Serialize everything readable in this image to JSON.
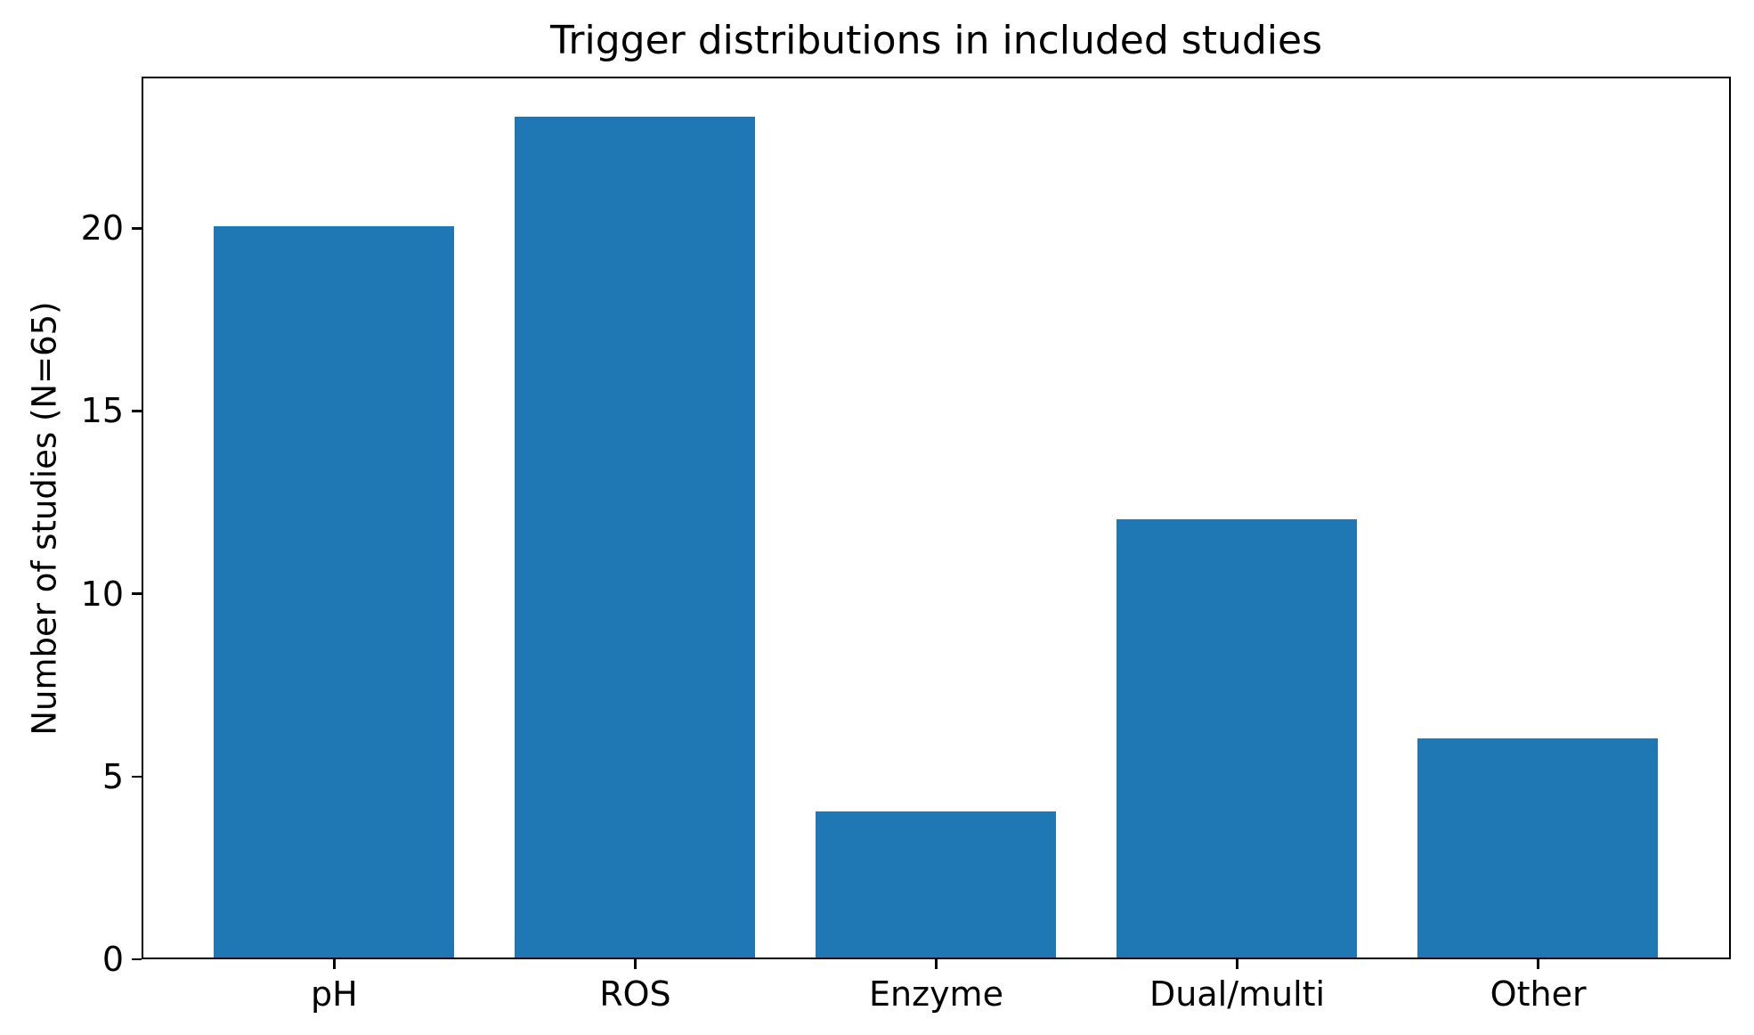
{
  "chart_data": {
    "type": "bar",
    "title": "Trigger distributions in included studies",
    "categories": [
      "pH",
      "ROS",
      "Enzyme",
      "Dual/multi",
      "Other"
    ],
    "values": [
      20,
      23,
      4,
      12,
      6
    ],
    "xlabel": "",
    "ylabel": "Number of studies (N=65)",
    "yticks": [
      0,
      5,
      10,
      15,
      20
    ],
    "ylim": [
      0,
      24.15
    ],
    "xlim": [
      -0.64,
      4.64
    ],
    "bar_width": 0.8,
    "bar_color": "#1f77b4",
    "axis_color": "#000000",
    "text_color": "#000000",
    "background": "#ffffff",
    "grid": false,
    "legend_position": "none"
  }
}
